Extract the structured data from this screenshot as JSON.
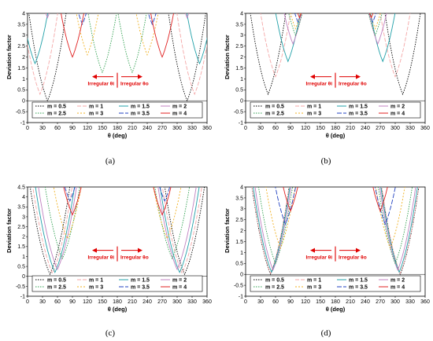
{
  "chart_data": [
    {
      "panel": "a",
      "caption": "(a)",
      "type": "line",
      "xlabel": "θ (deg)",
      "ylabel": "Deviation factor",
      "xlim": [
        0,
        360
      ],
      "ylim": [
        -1,
        4
      ],
      "xticks": [
        "0",
        "30",
        "60",
        "90",
        "120",
        "150",
        "180",
        "210",
        "240",
        "270",
        "300",
        "330",
        "360"
      ],
      "yticks": [
        "-1",
        "-0.5",
        "0",
        "0.5",
        "1",
        "1.5",
        "2",
        "2.5",
        "3",
        "3.5",
        "4"
      ],
      "annotations": [
        "Irregular θi",
        "Irregular θo"
      ],
      "series": [
        {
          "name": "m = 0.5",
          "color": "#000000",
          "dash": "1.5,1.5",
          "min_x": [
            40,
            320
          ],
          "min_y": 0.0
        },
        {
          "name": "m = 1",
          "color": "#f4a7a7",
          "dash": "5,2",
          "min_x": [
            25,
            335
          ],
          "min_y": 0.3
        },
        {
          "name": "m = 1.5",
          "color": "#20a0a8",
          "dash": "",
          "min_x": [
            15,
            345
          ],
          "min_y": 1.7
        },
        {
          "name": "m = 2",
          "color": "#c080c0",
          "dash": "",
          "min_x": [
            40,
            320
          ],
          "min_y": 3.8
        },
        {
          "name": "m = 2.5",
          "color": "#30a050",
          "dash": "1.5,1.5",
          "min_x": [
            150,
            210
          ],
          "min_y": 1.3
        },
        {
          "name": "m = 3",
          "color": "#f0b020",
          "dash": "2,2",
          "min_x": [
            120,
            240
          ],
          "min_y": 2.1
        },
        {
          "name": "m = 3.5",
          "color": "#2040c0",
          "dash": "6,2",
          "min_x": [
            110,
            250
          ],
          "min_y": 3.5
        },
        {
          "name": "m = 4",
          "color": "#e02020",
          "dash": "",
          "min_x": [
            90,
            270
          ],
          "min_y": 2.0
        }
      ]
    },
    {
      "panel": "b",
      "caption": "(b)",
      "type": "line",
      "xlabel": "θ (deg)",
      "ylabel": "Deviation factor",
      "xlim": [
        0,
        360
      ],
      "ylim": [
        -1,
        4
      ],
      "xticks": [
        "0",
        "30",
        "60",
        "90",
        "120",
        "150",
        "180",
        "210",
        "240",
        "270",
        "300",
        "330",
        "360"
      ],
      "yticks": [
        "-1",
        "-0.5",
        "0",
        "0.5",
        "1",
        "1.5",
        "2",
        "2.5",
        "3",
        "3.5",
        "4"
      ],
      "annotations": [
        "Irregular θi",
        "Irregular θo"
      ],
      "series": [
        {
          "name": "m = 0.5",
          "color": "#000000",
          "dash": "1.5,1.5",
          "min_x": [
            45,
            315
          ],
          "min_y": 0.3
        },
        {
          "name": "m = 1",
          "color": "#f4a7a7",
          "dash": "5,2",
          "min_x": [
            60,
            300
          ],
          "min_y": 1.1
        },
        {
          "name": "m = 1.5",
          "color": "#20a0a8",
          "dash": "",
          "min_x": [
            85,
            275
          ],
          "min_y": 1.8
        },
        {
          "name": "m = 2",
          "color": "#c080c0",
          "dash": "",
          "min_x": [
            95,
            265
          ],
          "min_y": 2.6
        },
        {
          "name": "m = 2.5",
          "color": "#30a050",
          "dash": "1.5,1.5",
          "min_x": [
            100,
            260
          ],
          "min_y": 3.0
        },
        {
          "name": "m = 3",
          "color": "#f0b020",
          "dash": "2,2",
          "min_x": [
            100,
            260
          ],
          "min_y": 3.3
        },
        {
          "name": "m = 3.5",
          "color": "#2040c0",
          "dash": "6,2",
          "min_x": [
            105,
            255
          ],
          "min_y": 3.6
        },
        {
          "name": "m = 4",
          "color": "#e02020",
          "dash": "",
          "min_x": [
            108,
            252
          ],
          "min_y": 3.8
        }
      ]
    },
    {
      "panel": "c",
      "caption": "(c)",
      "type": "line",
      "xlabel": "θ (deg)",
      "ylabel": "Deviation factor",
      "xlim": [
        0,
        360
      ],
      "ylim": [
        -1,
        4.5
      ],
      "xticks": [
        "0",
        "30",
        "60",
        "90",
        "120",
        "150",
        "180",
        "210",
        "240",
        "270",
        "300",
        "330",
        "360"
      ],
      "yticks": [
        "-1",
        "-0.5",
        "0",
        "0.5",
        "1",
        "1.5",
        "2",
        "2.5",
        "3",
        "3.5",
        "4",
        "4.5"
      ],
      "annotations": [
        "Irregular θi",
        "Irregular θo"
      ],
      "series": [
        {
          "name": "m = 0.5",
          "color": "#000000",
          "dash": "1.5,1.5",
          "min_x": [
            45,
            315
          ],
          "min_y": 0.1
        },
        {
          "name": "m = 1",
          "color": "#f4a7a7",
          "dash": "5,2",
          "min_x": [
            50,
            310
          ],
          "min_y": 0.15
        },
        {
          "name": "m = 1.5",
          "color": "#20a0a8",
          "dash": "",
          "min_x": [
            55,
            305
          ],
          "min_y": 0.2
        },
        {
          "name": "m = 2",
          "color": "#c080c0",
          "dash": "",
          "min_x": [
            60,
            300
          ],
          "min_y": 0.35
        },
        {
          "name": "m = 2.5",
          "color": "#30a050",
          "dash": "1.5,1.5",
          "min_x": [
            70,
            290
          ],
          "min_y": 0.9
        },
        {
          "name": "m = 3",
          "color": "#f0b020",
          "dash": "2,2",
          "min_x": [
            80,
            280
          ],
          "min_y": 1.9
        },
        {
          "name": "m = 3.5",
          "color": "#2040c0",
          "dash": "6,2",
          "min_x": [
            85,
            275
          ],
          "min_y": 3.8
        },
        {
          "name": "m = 4",
          "color": "#e02020",
          "dash": "",
          "min_x": [
            90,
            270
          ],
          "min_y": 3.1
        }
      ]
    },
    {
      "panel": "d",
      "caption": "(d)",
      "type": "line",
      "xlabel": "θ (deg)",
      "ylabel": "Deviation factor",
      "xlim": [
        0,
        360
      ],
      "ylim": [
        -1,
        4
      ],
      "xticks": [
        "0",
        "30",
        "60",
        "90",
        "120",
        "150",
        "180",
        "210",
        "240",
        "270",
        "300",
        "330",
        "360"
      ],
      "yticks": [
        "-1",
        "-0.5",
        "0",
        "0.5",
        "1",
        "1.5",
        "2",
        "2.5",
        "3",
        "3.5",
        "4"
      ],
      "annotations": [
        "Irregular θi",
        "Irregular θo"
      ],
      "series": [
        {
          "name": "m = 0.5",
          "color": "#000000",
          "dash": "1.5,1.5",
          "min_x": [
            50,
            310
          ],
          "min_y": 0.0
        },
        {
          "name": "m = 1",
          "color": "#f4a7a7",
          "dash": "5,2",
          "min_x": [
            50,
            310
          ],
          "min_y": 0.05
        },
        {
          "name": "m = 1.5",
          "color": "#20a0a8",
          "dash": "",
          "min_x": [
            52,
            308
          ],
          "min_y": 0.1
        },
        {
          "name": "m = 2",
          "color": "#c080c0",
          "dash": "",
          "min_x": [
            55,
            305
          ],
          "min_y": 0.2
        },
        {
          "name": "m = 2.5",
          "color": "#30a050",
          "dash": "1.5,1.5",
          "min_x": [
            60,
            300
          ],
          "min_y": 0.5
        },
        {
          "name": "m = 3",
          "color": "#f0b020",
          "dash": "2,2",
          "min_x": [
            70,
            290
          ],
          "min_y": 1.2
        },
        {
          "name": "m = 3.5",
          "color": "#2040c0",
          "dash": "6,2",
          "min_x": [
            80,
            280
          ],
          "min_y": 2.3
        },
        {
          "name": "m = 4",
          "color": "#e02020",
          "dash": "",
          "min_x": [
            90,
            270
          ],
          "min_y": 2.9
        }
      ]
    }
  ]
}
